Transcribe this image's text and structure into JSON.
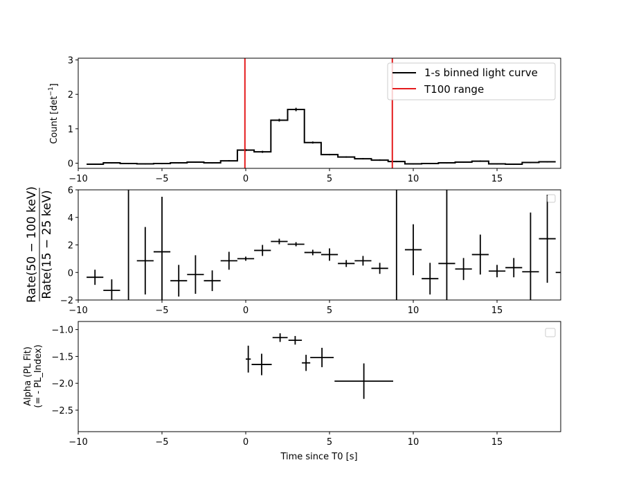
{
  "chart_data": [
    {
      "type": "line",
      "ylabel": "Count [det$^{-1}$]",
      "xlim": [
        -10,
        18.8
      ],
      "ylim": [
        -0.15,
        3.05
      ],
      "xticks": [
        -10,
        -5,
        0,
        5,
        10,
        15
      ],
      "yticks": [
        0,
        1,
        2,
        3
      ],
      "legend_position": "upper-right",
      "legend": [
        "1-s binned light curve",
        "T100 range"
      ],
      "series": [
        {
          "name": "1-s binned light curve",
          "bin_edges": [
            -9.5,
            -8.5,
            -7.5,
            -6.5,
            -5.5,
            -4.5,
            -3.5,
            -2.5,
            -1.5,
            -0.5,
            0.5,
            1.5,
            2.5,
            3.5,
            4.5,
            5.5,
            6.5,
            7.5,
            8.5,
            9.5,
            10.5,
            11.5,
            12.5,
            13.5,
            14.5,
            15.5,
            16.5,
            17.5,
            18.5
          ],
          "values": [
            -0.03,
            0.01,
            -0.01,
            -0.02,
            -0.01,
            0.01,
            0.03,
            0.01,
            0.07,
            0.38,
            0.33,
            1.25,
            1.56,
            0.6,
            0.25,
            0.18,
            0.13,
            0.09,
            0.05,
            -0.02,
            -0.01,
            0.01,
            0.03,
            0.06,
            -0.02,
            -0.03,
            0.02,
            0.04
          ],
          "errors": [
            0.02,
            0.02,
            0.02,
            0.02,
            0.02,
            0.02,
            0.02,
            0.02,
            0.02,
            0.03,
            0.03,
            0.04,
            0.05,
            0.03,
            0.02,
            0.02,
            0.02,
            0.02,
            0.02,
            0.02,
            0.02,
            0.02,
            0.02,
            0.02,
            0.02,
            0.02,
            0.02,
            0.02
          ]
        }
      ],
      "vlines": [
        {
          "name": "T100 range",
          "x": -0.05,
          "color": "#e41a1c"
        },
        {
          "name": "T100 range",
          "x": 8.75,
          "color": "#e41a1c"
        }
      ]
    },
    {
      "type": "scatter",
      "ylabel_numerator": "Rate(50 − 100 keV)",
      "ylabel_denominator": "Rate(15 − 25 keV)",
      "xlim": [
        -10,
        18.8
      ],
      "ylim": [
        -2,
        6
      ],
      "xticks": [
        -10,
        -5,
        0,
        5,
        10,
        15
      ],
      "yticks": [
        -2,
        0,
        2,
        4,
        6
      ],
      "legend_position": "upper-right",
      "points": [
        {
          "x": -9,
          "y": -0.35,
          "xerr": 0.5,
          "yerr_low": 0.55,
          "yerr_high": 0.55
        },
        {
          "x": -8,
          "y": -1.3,
          "xerr": 0.5,
          "yerr_low": 0.8,
          "yerr_high": 0.8
        },
        {
          "x": -7,
          "y": 0,
          "xerr": 0,
          "yerr_low": 6,
          "yerr_high": 6
        },
        {
          "x": -6,
          "y": 0.85,
          "xerr": 0.5,
          "yerr_low": 2.45,
          "yerr_high": 2.45
        },
        {
          "x": -5,
          "y": 1.5,
          "xerr": 0.5,
          "yerr_low": 4,
          "yerr_high": 4
        },
        {
          "x": -4,
          "y": -0.6,
          "xerr": 0.5,
          "yerr_low": 1.15,
          "yerr_high": 1.15
        },
        {
          "x": -3,
          "y": -0.15,
          "xerr": 0.5,
          "yerr_low": 1.4,
          "yerr_high": 1.4
        },
        {
          "x": -2,
          "y": -0.6,
          "xerr": 0.5,
          "yerr_low": 0.75,
          "yerr_high": 0.75
        },
        {
          "x": -1,
          "y": 0.85,
          "xerr": 0.5,
          "yerr_low": 0.65,
          "yerr_high": 0.65
        },
        {
          "x": 0,
          "y": 1.0,
          "xerr": 0.5,
          "yerr_low": 0.15,
          "yerr_high": 0.15
        },
        {
          "x": 1,
          "y": 1.6,
          "xerr": 0.5,
          "yerr_low": 0.4,
          "yerr_high": 0.4
        },
        {
          "x": 2,
          "y": 2.25,
          "xerr": 0.5,
          "yerr_low": 0.2,
          "yerr_high": 0.2
        },
        {
          "x": 3,
          "y": 2.05,
          "xerr": 0.5,
          "yerr_low": 0.15,
          "yerr_high": 0.15
        },
        {
          "x": 4,
          "y": 1.45,
          "xerr": 0.5,
          "yerr_low": 0.2,
          "yerr_high": 0.2
        },
        {
          "x": 5,
          "y": 1.3,
          "xerr": 0.5,
          "yerr_low": 0.45,
          "yerr_high": 0.45
        },
        {
          "x": 6,
          "y": 0.65,
          "xerr": 0.5,
          "yerr_low": 0.25,
          "yerr_high": 0.25
        },
        {
          "x": 7,
          "y": 0.85,
          "xerr": 0.5,
          "yerr_low": 0.35,
          "yerr_high": 0.35
        },
        {
          "x": 8,
          "y": 0.3,
          "xerr": 0.5,
          "yerr_low": 0.4,
          "yerr_high": 0.4
        },
        {
          "x": 9,
          "y": 0,
          "xerr": 0,
          "yerr_low": 6,
          "yerr_high": 6
        },
        {
          "x": 10,
          "y": 1.65,
          "xerr": 0.5,
          "yerr_low": 1.85,
          "yerr_high": 1.85
        },
        {
          "x": 11,
          "y": -0.45,
          "xerr": 0.5,
          "yerr_low": 1.15,
          "yerr_high": 1.15
        },
        {
          "x": 12,
          "y": 0.65,
          "xerr": 0.5,
          "yerr_low": 6,
          "yerr_high": 6
        },
        {
          "x": 13,
          "y": 0.25,
          "xerr": 0.5,
          "yerr_low": 0.8,
          "yerr_high": 0.8
        },
        {
          "x": 14,
          "y": 1.3,
          "xerr": 0.5,
          "yerr_low": 1.45,
          "yerr_high": 1.45
        },
        {
          "x": 15,
          "y": 0.1,
          "xerr": 0.5,
          "yerr_low": 0.45,
          "yerr_high": 0.45
        },
        {
          "x": 16,
          "y": 0.35,
          "xerr": 0.5,
          "yerr_low": 0.7,
          "yerr_high": 0.7
        },
        {
          "x": 17,
          "y": 0.05,
          "xerr": 0.5,
          "yerr_low": 2.3,
          "yerr_high": 4.3
        },
        {
          "x": 18,
          "y": 2.45,
          "xerr": 0.5,
          "yerr_low": 3.2,
          "yerr_high": 3.2
        },
        {
          "x": 19,
          "y": 0,
          "xerr": 0.5,
          "yerr_low": 0,
          "yerr_high": 0
        }
      ]
    },
    {
      "type": "scatter",
      "ylabel_line1": "Alpha (PL Fit)",
      "ylabel_line2": "(= - PL_Index)",
      "xlabel": "Time since T0 [s]",
      "xlim": [
        -10,
        18.8
      ],
      "ylim": [
        -2.9,
        -0.85
      ],
      "xticks": [
        -10,
        -5,
        0,
        5,
        10,
        15
      ],
      "yticks": [
        -2.5,
        -2.0,
        -1.5,
        -1.0
      ],
      "legend_position": "upper-right",
      "points": [
        {
          "x": 0.15,
          "y": -1.55,
          "xerr_low": 0.15,
          "xerr_high": 0.15,
          "yerr": 0.25
        },
        {
          "x": 0.95,
          "y": -1.65,
          "xerr_low": 0.6,
          "xerr_high": 0.6,
          "yerr": 0.2
        },
        {
          "x": 2.05,
          "y": -1.15,
          "xerr_low": 0.45,
          "xerr_high": 0.45,
          "yerr": 0.08
        },
        {
          "x": 2.95,
          "y": -1.2,
          "xerr_low": 0.4,
          "xerr_high": 0.4,
          "yerr": 0.08
        },
        {
          "x": 3.6,
          "y": -1.62,
          "xerr_low": 0.25,
          "xerr_high": 0.25,
          "yerr": 0.15
        },
        {
          "x": 4.55,
          "y": -1.52,
          "xerr_low": 0.7,
          "xerr_high": 0.7,
          "yerr": 0.18
        },
        {
          "x": 7.05,
          "y": -1.96,
          "xerr_low": 1.75,
          "xerr_high": 1.75,
          "yerr": 0.33
        }
      ]
    }
  ]
}
